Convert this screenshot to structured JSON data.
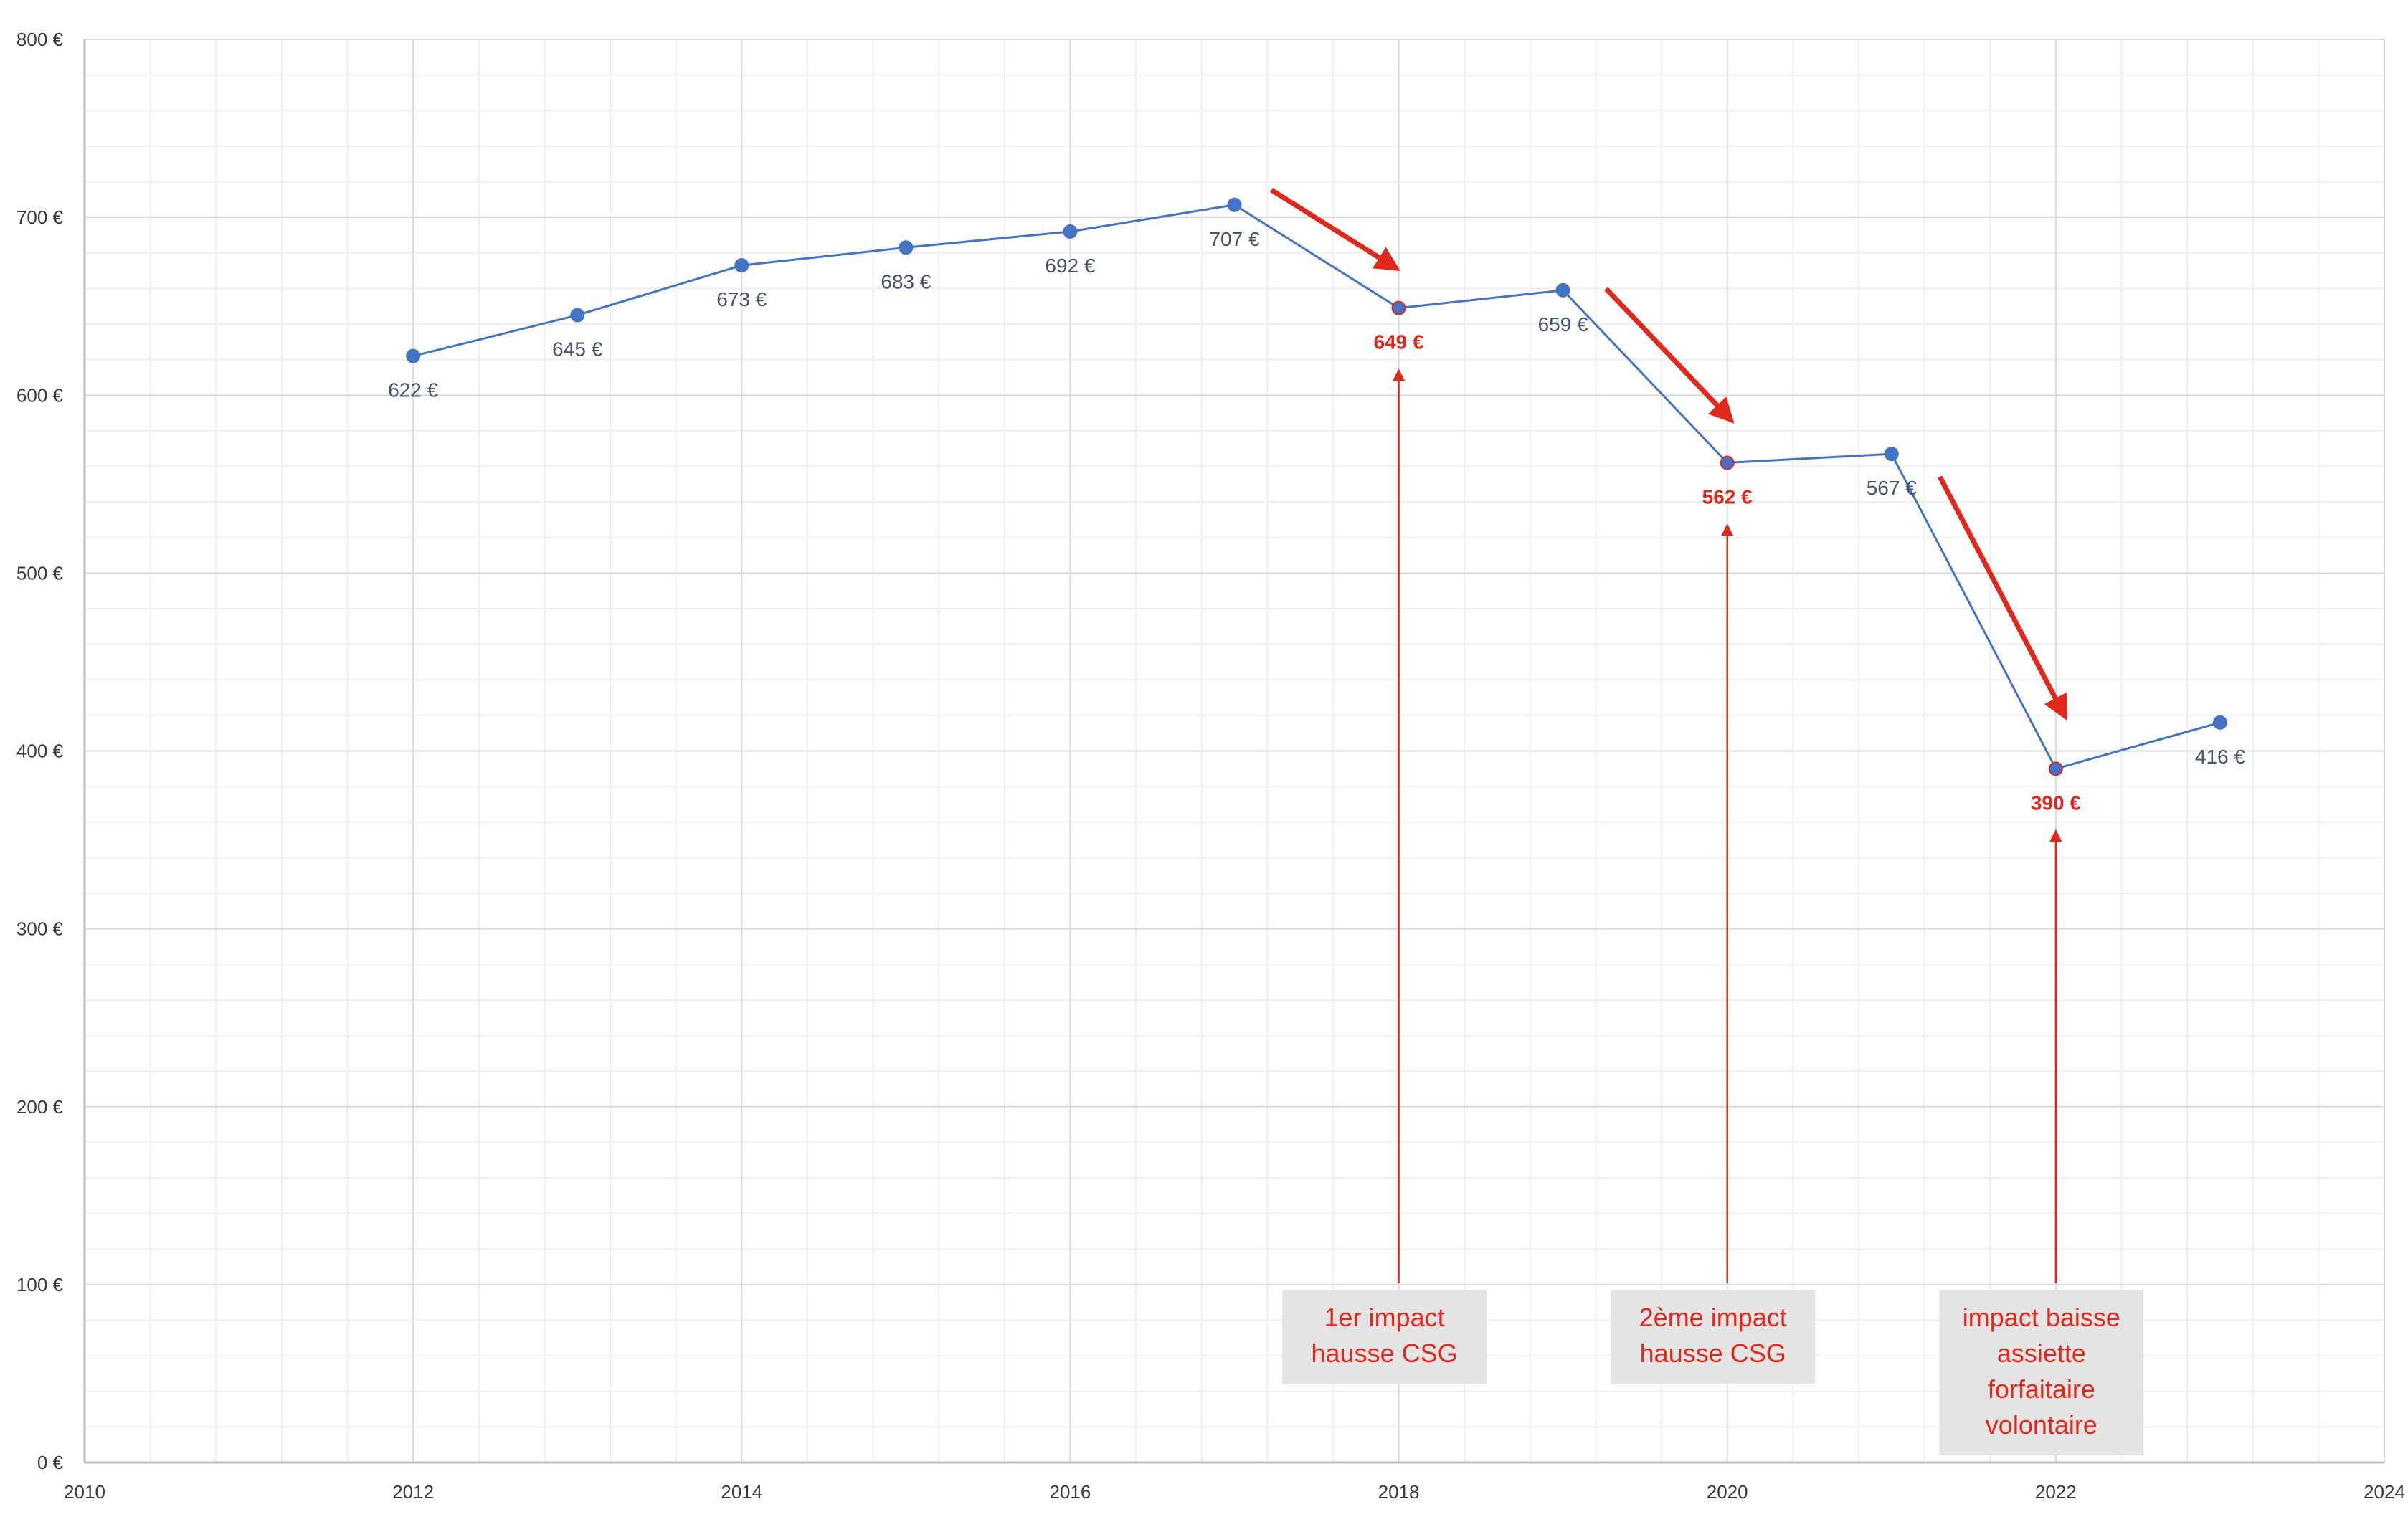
{
  "chart_data": {
    "type": "scatter",
    "title": "",
    "xlabel": "",
    "ylabel": "",
    "xlim": [
      2010,
      2024
    ],
    "ylim": [
      0,
      800
    ],
    "x_ticks": [
      "2010",
      "2012",
      "2014",
      "2016",
      "2018",
      "2020",
      "2022",
      "2024"
    ],
    "y_ticks": [
      "0 €",
      "100 €",
      "200 €",
      "300 €",
      "400 €",
      "500 €",
      "600 €",
      "700 €",
      "800 €"
    ],
    "grid": true,
    "legend": "none",
    "series": [
      {
        "color": "#4472c4",
        "points": [
          {
            "x": 2012,
            "y": 622,
            "label": "622 €"
          },
          {
            "x": 2013,
            "y": 645,
            "label": "645 €"
          },
          {
            "x": 2014,
            "y": 673,
            "label": "673 €"
          },
          {
            "x": 2015,
            "y": 683,
            "label": "683 €"
          },
          {
            "x": 2016,
            "y": 692,
            "label": "692 €"
          },
          {
            "x": 2017,
            "y": 707,
            "label": "707 €"
          },
          {
            "x": 2018,
            "y": 649,
            "label": "649 €",
            "highlight": true
          },
          {
            "x": 2019,
            "y": 659,
            "label": "659 €"
          },
          {
            "x": 2020,
            "y": 562,
            "label": "562 €",
            "highlight": true
          },
          {
            "x": 2021,
            "y": 567,
            "label": "567 €"
          },
          {
            "x": 2022,
            "y": 390,
            "label": "390 €",
            "highlight": true
          },
          {
            "x": 2023,
            "y": 416,
            "label": "416 €"
          }
        ]
      }
    ],
    "highlight_color": "#e0281c",
    "annotations": [
      {
        "x": 2018,
        "lines": [
          "1er impact",
          "hausse CSG"
        ]
      },
      {
        "x": 2020,
        "lines": [
          "2ème impact",
          "hausse CSG"
        ]
      },
      {
        "x": 2022,
        "lines": [
          "impact baisse",
          "assiette",
          "forfaitaire",
          "volontaire"
        ]
      }
    ]
  }
}
